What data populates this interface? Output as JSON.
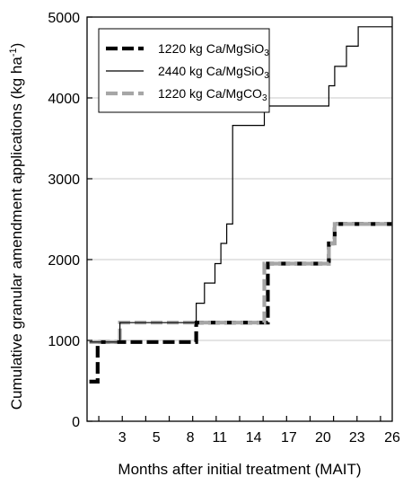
{
  "chart_data": {
    "type": "line",
    "title": "",
    "xlabel": "Months after initial treatment (MAIT)",
    "ylabel": "Cumulative granular amendment applications (kg ha-1)",
    "ylabel_parts": {
      "main": "Cumulative granular amendment applications (kg ha",
      "sup": "-1",
      "close": ")"
    },
    "xlim": [
      0,
      26
    ],
    "ylim": [
      0,
      5000
    ],
    "x_ticks": [
      1,
      3,
      5,
      7,
      9,
      11,
      13,
      15,
      17,
      19,
      21,
      23,
      25
    ],
    "x_tick_labels": [
      "",
      "",
      "",
      "",
      "",
      "",
      "",
      "",
      "",
      "",
      "",
      "",
      ""
    ],
    "x_tick_labels_shown": [
      "3",
      "5",
      "8",
      "11",
      "14",
      "17",
      "20",
      "23",
      "26"
    ],
    "x_tick_label_positions": [
      3,
      5.9,
      8.8,
      11.3,
      14.2,
      17.2,
      20.1,
      23,
      26
    ],
    "y_ticks": [
      0,
      1000,
      2000,
      3000,
      4000,
      5000
    ],
    "y_tick_labels": [
      "0",
      "1000",
      "2000",
      "3000",
      "4000",
      "5000"
    ],
    "grid": "horizontal",
    "legend_position": "top-left",
    "series": [
      {
        "name": "1220 kg Ca/MgSiO3",
        "legend_main": "1220 kg Ca/MgSiO",
        "legend_sub": "3",
        "style": "dashed-thick",
        "color": "#000000",
        "x": [
          0.2,
          0.9,
          0.9,
          1.6,
          1.6,
          9.3,
          9.3,
          15.4,
          15.4,
          20.6,
          20.6,
          21.1,
          21.1,
          26
        ],
        "y": [
          490,
          490,
          980,
          980,
          980,
          980,
          1220,
          1220,
          1950,
          1950,
          2200,
          2200,
          2440,
          2440
        ]
      },
      {
        "name": "2440 kg Ca/MgSiO3",
        "legend_main": "2440 kg Ca/MgSiO",
        "legend_sub": "3",
        "style": "solid-thin",
        "color": "#000000",
        "x": [
          0.2,
          2.8,
          2.8,
          9.3,
          9.3,
          10,
          10,
          10.9,
          10.9,
          11.4,
          11.4,
          11.9,
          11.9,
          12.4,
          12.4,
          15.1,
          15.1,
          20.6,
          20.6,
          21.1,
          21.1,
          22.1,
          22.1,
          23.1,
          23.1,
          23.6,
          23.6,
          26
        ],
        "y": [
          980,
          980,
          1220,
          1220,
          1460,
          1460,
          1710,
          1710,
          1950,
          1950,
          2200,
          2200,
          2440,
          2440,
          3660,
          3660,
          3900,
          3900,
          4150,
          4150,
          4390,
          4390,
          4640,
          4640,
          4880,
          4880,
          4880,
          4880
        ]
      },
      {
        "name": "1220 kg Ca/MgCO3",
        "legend_main": "1220 kg Ca/MgCO",
        "legend_sub": "3",
        "style": "dashed-gray",
        "color": "#a6a6a6",
        "x": [
          0.2,
          2.8,
          2.8,
          15.1,
          15.1,
          20.6,
          20.6,
          21.1,
          21.1,
          26
        ],
        "y": [
          980,
          980,
          1220,
          1220,
          1950,
          1950,
          2200,
          2200,
          2440,
          2440
        ]
      }
    ]
  }
}
